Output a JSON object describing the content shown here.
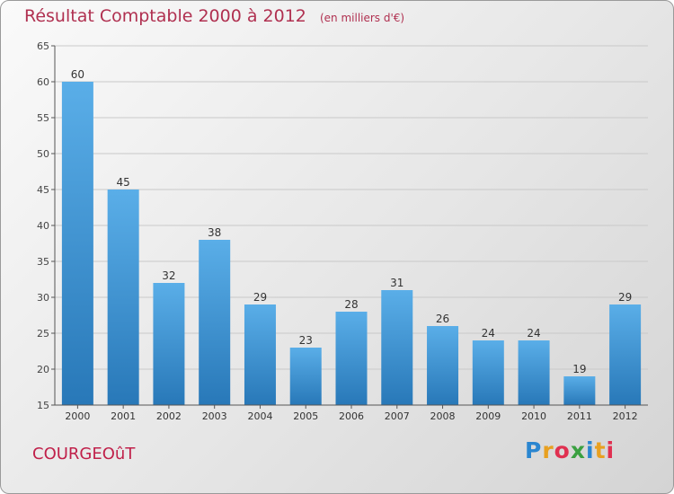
{
  "chart_data": {
    "type": "bar",
    "title": "Résultat Comptable 2000 à 2012",
    "subtitle": "(en milliers d'€)",
    "categories": [
      "2000",
      "2001",
      "2002",
      "2003",
      "2004",
      "2005",
      "2006",
      "2007",
      "2008",
      "2009",
      "2010",
      "2011",
      "2012"
    ],
    "values": [
      60,
      45,
      32,
      38,
      29,
      23,
      28,
      31,
      26,
      24,
      24,
      19,
      29
    ],
    "ylim": [
      15,
      65
    ],
    "yticks": [
      15,
      20,
      25,
      30,
      35,
      40,
      45,
      50,
      55,
      60,
      65
    ],
    "xlabel": "",
    "ylabel": "",
    "grid": true,
    "bar_color_top": "#5aaee8",
    "bar_color_bottom": "#2878b8"
  },
  "commune": "COURGEOûT",
  "logo": {
    "text": "Proxiti",
    "letters": [
      {
        "char": "P",
        "color": "#2a86d0"
      },
      {
        "char": "r",
        "color": "#e8a020"
      },
      {
        "char": "o",
        "color": "#e03050"
      },
      {
        "char": "x",
        "color": "#3aa040"
      },
      {
        "char": "i",
        "color": "#2a86d0"
      },
      {
        "char": "t",
        "color": "#e8a020"
      },
      {
        "char": "i",
        "color": "#e03050"
      }
    ]
  }
}
